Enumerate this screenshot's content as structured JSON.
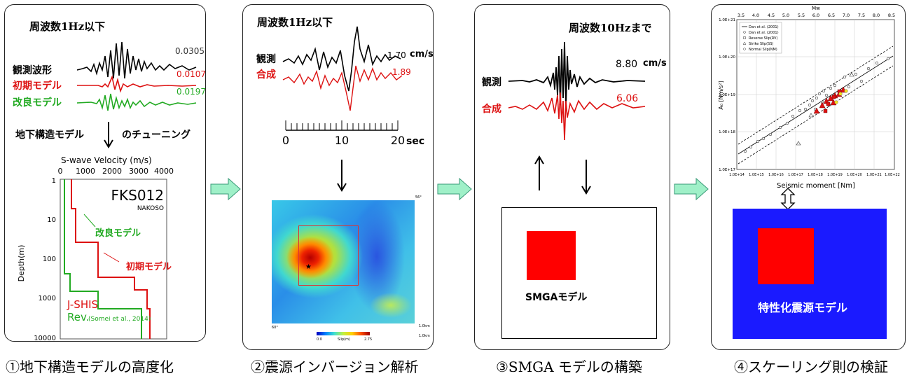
{
  "colors": {
    "observed": "#000000",
    "initial": "#dd1111",
    "improved": "#22aa22",
    "panel_border": "#222222",
    "flow_arrow": "#9ff0c8",
    "blue": "#1a1aff",
    "red": "#ff0000"
  },
  "panel1": {
    "heading": "周波数1Hz以下",
    "amp_obs": "0.0305",
    "amp_init": "0.0107",
    "amp_impr": "0.0197",
    "label_obs": "観測波形",
    "label_init": "初期モデル",
    "label_impr": "改良モデル",
    "tuning_left": "地下構造モデル",
    "tuning_right": "のチューニング",
    "vel_title": "S-wave Velocity (m/s)",
    "vel_ticks": [
      "0",
      "1000",
      "2000",
      "3000",
      "4000"
    ],
    "depth_label": "Depth(m)",
    "depth_ticks": [
      "1",
      "10",
      "100",
      "1000",
      "10000"
    ],
    "station": "FKS012",
    "station_sub": "NAKOSO",
    "ann_improved": "改良モデル",
    "ann_initial": "初期モデル",
    "legend_jshis": "J-SHIS",
    "legend_rev": "Rev.",
    "legend_rev_ref": "(Somei et al., 2014)"
  },
  "panel2": {
    "heading": "周波数1Hz以下",
    "label_obs": "観測",
    "label_syn": "合成",
    "amp_obs": "1.70",
    "amp_unit": "cm/s",
    "amp_syn": "1.89",
    "time_ticks": [
      "0",
      "10",
      "20"
    ],
    "time_unit": "sec",
    "map_corner_tr": "56°",
    "map_corner_bl": "60°",
    "scale_label_1": "1.0km",
    "scale_label_2": "1.0km",
    "cbar_min": "0.0",
    "cbar_label": "Slip(m)",
    "cbar_max": "2.75"
  },
  "panel3": {
    "heading": "周波数10Hzまで",
    "label_obs": "観測",
    "label_syn": "合成",
    "amp_obs": "8.80",
    "amp_unit": "cm/s",
    "amp_syn": "6.06",
    "model_label": "SMGAモデル"
  },
  "panel4": {
    "mw_label": "Mw",
    "mw_ticks": [
      "3.5",
      "4.0",
      "4.5",
      "5.0",
      "5.5",
      "6.0",
      "6.5",
      "7.0",
      "7.5",
      "8.0",
      "8.5"
    ],
    "y_ticks": [
      "1.0E+21",
      "1.0E+20",
      "1.0E+19",
      "1.0E+18",
      "1.0E+17"
    ],
    "x_ticks": [
      "1.0E+14",
      "1.0E+15",
      "1.0E+16",
      "1.0E+17",
      "1.0E+18",
      "1.0E+19",
      "1.0E+20",
      "1.0E+21",
      "1.0E+22"
    ],
    "x_label": "Seismic moment [Nm]",
    "y_label": "A₀ [Nm/s²]",
    "legend": [
      "Dan et al. (2001)",
      "Dan et al. (2001)",
      "Reverse Slip(RV)",
      "Strike Slip(SS)",
      "Normal Slip(NM)"
    ],
    "model_label": "特性化震源モデル"
  },
  "captions": [
    "①地下構造モデルの高度化",
    "②震源インバージョン解析",
    "③SMGA モデルの構築",
    "④スケーリング則の検証"
  ]
}
